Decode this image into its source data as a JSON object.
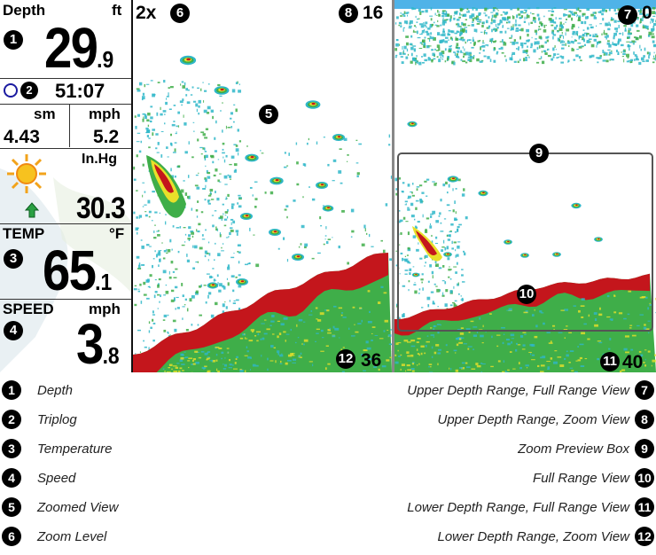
{
  "sidebar": {
    "depth_label": "Depth",
    "depth_unit": "ft",
    "depth_value_int": "29",
    "depth_value_dec": ".9",
    "trip_time": "51:07",
    "dist_unit": "sm",
    "speed_unit_trip": "mph",
    "trip_distance": "4.43",
    "trip_speed": "5.2",
    "pressure_unit": "In.Hg",
    "pressure_value": "30.3",
    "temp_label": "TEMP",
    "temp_unit": "°F",
    "temp_value_int": "65",
    "temp_value_dec": ".1",
    "speed_label": "SPEED",
    "speed_unit": "mph",
    "speed_value_int": "3",
    "speed_value_dec": ".8"
  },
  "zoom_view": {
    "zoom_level": "2x",
    "upper_depth": "16",
    "lower_depth": "36"
  },
  "full_view": {
    "upper_depth": "0",
    "lower_depth": "40"
  },
  "callouts": [
    "1",
    "2",
    "3",
    "4",
    "5",
    "6",
    "7",
    "8",
    "9",
    "10",
    "11",
    "12"
  ],
  "legend": {
    "left": [
      {
        "num": "1",
        "label": "Depth"
      },
      {
        "num": "2",
        "label": "Triplog"
      },
      {
        "num": "3",
        "label": "Temperature"
      },
      {
        "num": "4",
        "label": "Speed"
      },
      {
        "num": "5",
        "label": "Zoomed View"
      },
      {
        "num": "6",
        "label": "Zoom Level"
      }
    ],
    "right": [
      {
        "num": "7",
        "label": "Upper Depth Range, Full Range View"
      },
      {
        "num": "8",
        "label": "Upper Depth Range, Zoom View"
      },
      {
        "num": "9",
        "label": "Zoom Preview Box"
      },
      {
        "num": "10",
        "label": "Full Range View"
      },
      {
        "num": "11",
        "label": "Lower Depth Range, Full Range View"
      },
      {
        "num": "12",
        "label": "Lower Depth Range, Zoom View"
      }
    ]
  },
  "colors": {
    "sonar_red": "#c4161c",
    "sonar_yellow": "#e8e02a",
    "sonar_green": "#3fae49",
    "sonar_cyan": "#2fb7c9",
    "surface_blue": "#4fb3e8"
  }
}
